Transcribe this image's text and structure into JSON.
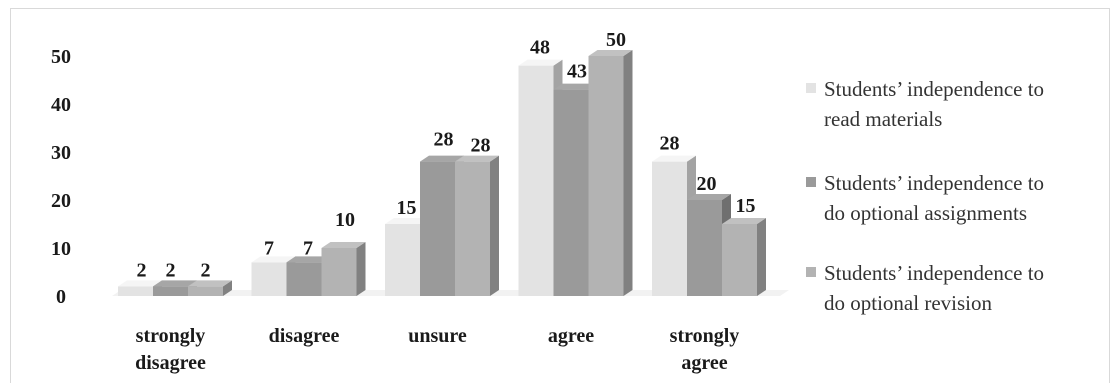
{
  "chart_data": {
    "type": "bar",
    "title": "",
    "xlabel": "",
    "ylabel": "",
    "ylim": [
      0,
      50
    ],
    "yticks": [
      0,
      10,
      20,
      30,
      40,
      50
    ],
    "grid": false,
    "legend_position": "right",
    "categories": [
      [
        "strongly",
        "disagree"
      ],
      [
        "disagree"
      ],
      [
        "unsure"
      ],
      [
        "agree"
      ],
      [
        "strongly",
        "agree"
      ]
    ],
    "series": [
      {
        "name": [
          "Students’ independence to",
          "read materials"
        ],
        "values": [
          2,
          7,
          15,
          48,
          28
        ],
        "color": "#e3e3e3"
      },
      {
        "name": [
          "Students’ independence to",
          "do optional assignments"
        ],
        "values": [
          2,
          7,
          28,
          43,
          20
        ],
        "color": "#9a9a9a"
      },
      {
        "name": [
          "Students’ independence to",
          "do optional revision"
        ],
        "values": [
          2,
          10,
          28,
          50,
          15
        ],
        "color": "#b3b3b3"
      }
    ]
  }
}
